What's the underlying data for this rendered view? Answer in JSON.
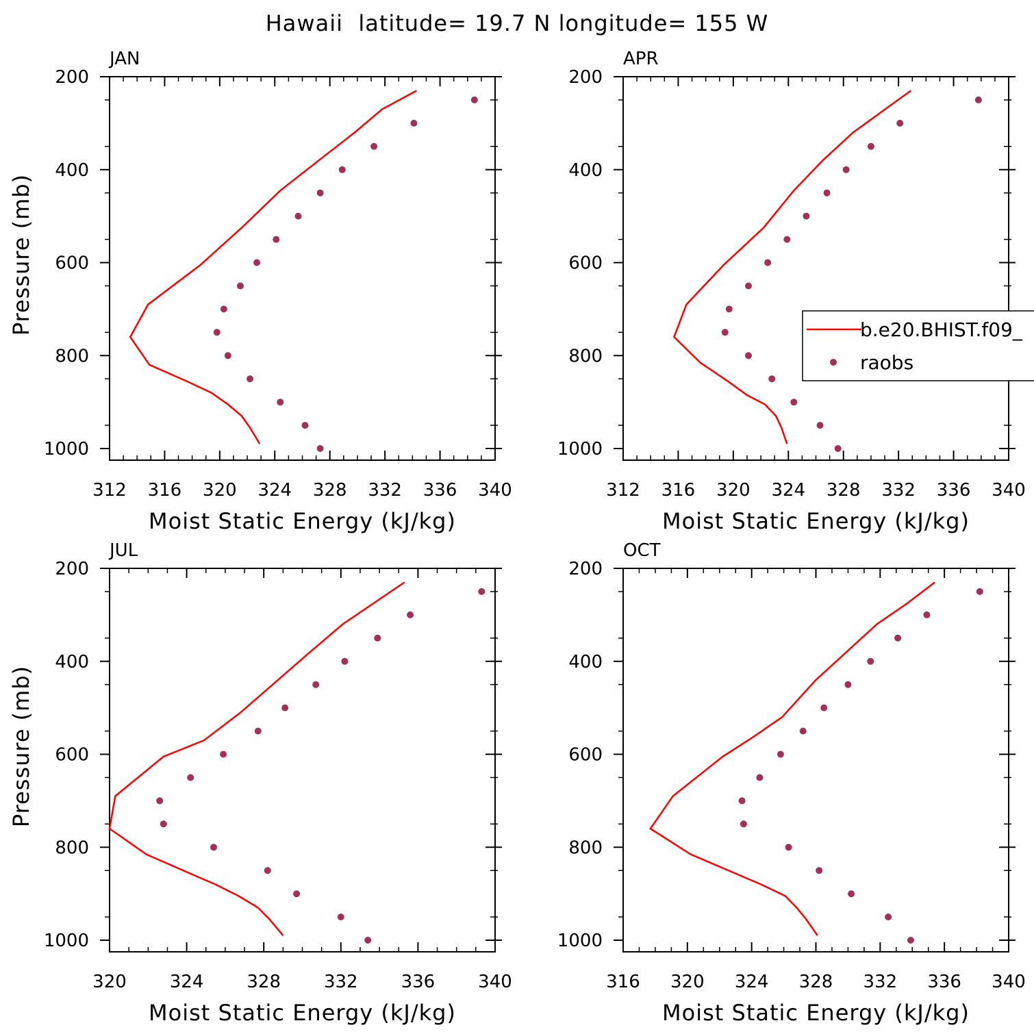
{
  "title": "Hawaii  latitude= 19.7 N longitude= 155 W",
  "colors": {
    "model": "#ff0000",
    "obs": "#a3305a"
  },
  "legend": {
    "placement": "right-middle",
    "model_label": "b.e20.BHIST.f09_",
    "obs_label": "raobs"
  },
  "chart_data": [
    {
      "type": "line",
      "title": "JAN",
      "xlabel": "Moist Static Energy (kJ/kg)",
      "ylabel": "Pressure (mb)",
      "xlim": [
        312,
        340
      ],
      "xticks": [
        312,
        316,
        320,
        324,
        328,
        332,
        336,
        340
      ],
      "ylim": [
        200,
        1025
      ],
      "yticks": [
        200,
        400,
        600,
        800,
        1000
      ],
      "yscale": "linear-inverted",
      "series": [
        {
          "name": "b.e20.BHIST.f09_",
          "kind": "line",
          "x": [
            334.3,
            331.8,
            329.8,
            327.2,
            324.4,
            321.6,
            318.6,
            314.8,
            313.5,
            314.9,
            317.6,
            319.4,
            320.6,
            321.6,
            322.2,
            322.9
          ],
          "y": [
            230,
            270,
            320,
            380,
            445,
            525,
            605,
            690,
            760,
            820,
            855,
            880,
            905,
            930,
            955,
            990
          ]
        },
        {
          "name": "raobs",
          "kind": "scatter",
          "x": [
            338.5,
            334.1,
            331.2,
            328.9,
            327.3,
            325.7,
            324.1,
            322.7,
            321.5,
            320.3,
            319.8,
            320.6,
            322.2,
            324.4,
            326.2,
            327.3
          ],
          "y": [
            250,
            300,
            350,
            400,
            450,
            500,
            550,
            600,
            650,
            700,
            750,
            800,
            850,
            900,
            950,
            1000
          ]
        }
      ]
    },
    {
      "type": "line",
      "title": "APR",
      "xlabel": "Moist Static Energy (kJ/kg)",
      "ylabel": "",
      "xlim": [
        312,
        340
      ],
      "xticks": [
        312,
        316,
        320,
        324,
        328,
        332,
        336,
        340
      ],
      "ylim": [
        200,
        1025
      ],
      "yticks": [
        200,
        400,
        600,
        800,
        1000
      ],
      "yscale": "linear-inverted",
      "series": [
        {
          "name": "b.e20.BHIST.f09_",
          "kind": "line",
          "x": [
            332.9,
            330.8,
            328.7,
            326.5,
            324.4,
            322.2,
            319.3,
            316.6,
            315.7,
            317.6,
            319.6,
            321.0,
            322.3,
            323.1,
            323.5,
            323.9
          ],
          "y": [
            230,
            275,
            320,
            380,
            445,
            525,
            605,
            690,
            760,
            815,
            855,
            885,
            905,
            930,
            955,
            990
          ]
        },
        {
          "name": "raobs",
          "kind": "scatter",
          "x": [
            337.8,
            332.1,
            330.0,
            328.2,
            326.8,
            325.3,
            323.9,
            322.5,
            321.1,
            319.7,
            319.4,
            321.1,
            322.8,
            324.4,
            326.3,
            327.6
          ],
          "y": [
            250,
            300,
            350,
            400,
            450,
            500,
            550,
            600,
            650,
            700,
            750,
            800,
            850,
            900,
            950,
            1000
          ]
        }
      ]
    },
    {
      "type": "line",
      "title": "JUL",
      "xlabel": "Moist Static Energy (kJ/kg)",
      "ylabel": "Pressure (mb)",
      "xlim": [
        320,
        340
      ],
      "xticks": [
        320,
        324,
        328,
        332,
        336,
        340
      ],
      "ylim": [
        200,
        1025
      ],
      "yticks": [
        200,
        400,
        600,
        800,
        1000
      ],
      "yscale": "linear-inverted",
      "series": [
        {
          "name": "b.e20.BHIST.f09_",
          "kind": "line",
          "x": [
            335.3,
            333.7,
            332.1,
            330.4,
            328.6,
            326.8,
            324.9,
            322.8,
            320.3,
            320.0,
            321.9,
            324.1,
            325.5,
            326.7,
            327.7,
            328.3,
            329.0
          ],
          "y": [
            230,
            275,
            320,
            380,
            445,
            510,
            570,
            605,
            690,
            760,
            815,
            855,
            880,
            905,
            930,
            955,
            990
          ]
        },
        {
          "name": "raobs",
          "kind": "scatter",
          "x": [
            339.3,
            335.6,
            333.9,
            332.2,
            330.7,
            329.1,
            327.7,
            325.9,
            324.2,
            322.6,
            322.8,
            325.4,
            328.2,
            329.7,
            332.0,
            333.4
          ],
          "y": [
            250,
            300,
            350,
            400,
            450,
            500,
            550,
            600,
            650,
            700,
            750,
            800,
            850,
            900,
            950,
            1000
          ]
        }
      ]
    },
    {
      "type": "line",
      "title": "OCT",
      "xlabel": "Moist Static Energy (kJ/kg)",
      "ylabel": "",
      "xlim": [
        316,
        340
      ],
      "xticks": [
        316,
        320,
        324,
        328,
        332,
        336,
        340
      ],
      "ylim": [
        200,
        1025
      ],
      "yticks": [
        200,
        400,
        600,
        800,
        1000
      ],
      "yscale": "linear-inverted",
      "series": [
        {
          "name": "b.e20.BHIST.f09_",
          "kind": "line",
          "x": [
            335.4,
            333.7,
            331.8,
            329.9,
            328.0,
            325.9,
            324.0,
            322.2,
            319.1,
            317.7,
            320.2,
            322.9,
            324.6,
            326.1,
            326.8,
            327.4,
            328.1
          ],
          "y": [
            230,
            275,
            320,
            380,
            440,
            520,
            565,
            605,
            690,
            760,
            815,
            855,
            880,
            905,
            930,
            955,
            990
          ]
        },
        {
          "name": "raobs",
          "kind": "scatter",
          "x": [
            338.2,
            334.9,
            333.1,
            331.4,
            330.0,
            328.5,
            327.2,
            325.8,
            324.5,
            323.4,
            323.5,
            326.3,
            328.2,
            330.2,
            332.5,
            333.9
          ],
          "y": [
            250,
            300,
            350,
            400,
            450,
            500,
            550,
            600,
            650,
            700,
            750,
            800,
            850,
            900,
            950,
            1000
          ]
        }
      ]
    }
  ]
}
